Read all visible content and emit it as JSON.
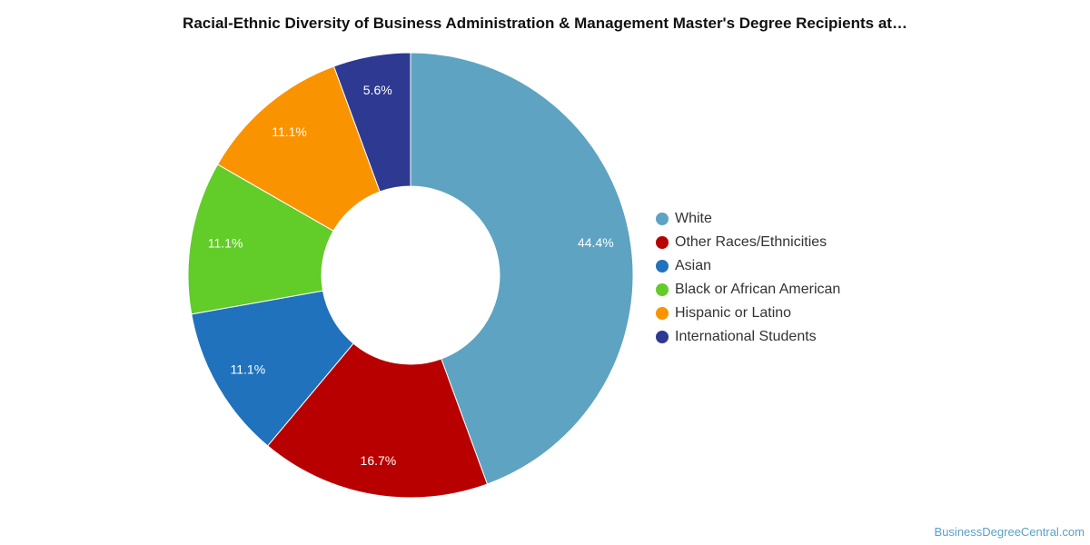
{
  "chart_data": {
    "type": "pie",
    "donut": true,
    "title": "Racial-Ethnic Diversity of Business Administration & Management Master's Degree Recipients at…",
    "categories": [
      "White",
      "Other Races/Ethnicities",
      "Asian",
      "Black or African American",
      "Hispanic or Latino",
      "International Students"
    ],
    "values": [
      44.4,
      16.7,
      11.1,
      11.1,
      11.1,
      5.6
    ],
    "data_labels": [
      "44.4%",
      "16.7%",
      "11.1%",
      "11.1%",
      "11.1%",
      "5.6%"
    ],
    "colors": [
      "#5ea3c1",
      "#b80000",
      "#1f72bb",
      "#62cc29",
      "#f99400",
      "#2e3991"
    ],
    "legend_position": "right"
  },
  "footer": {
    "watermark": "BusinessDegreeCentral.com"
  }
}
